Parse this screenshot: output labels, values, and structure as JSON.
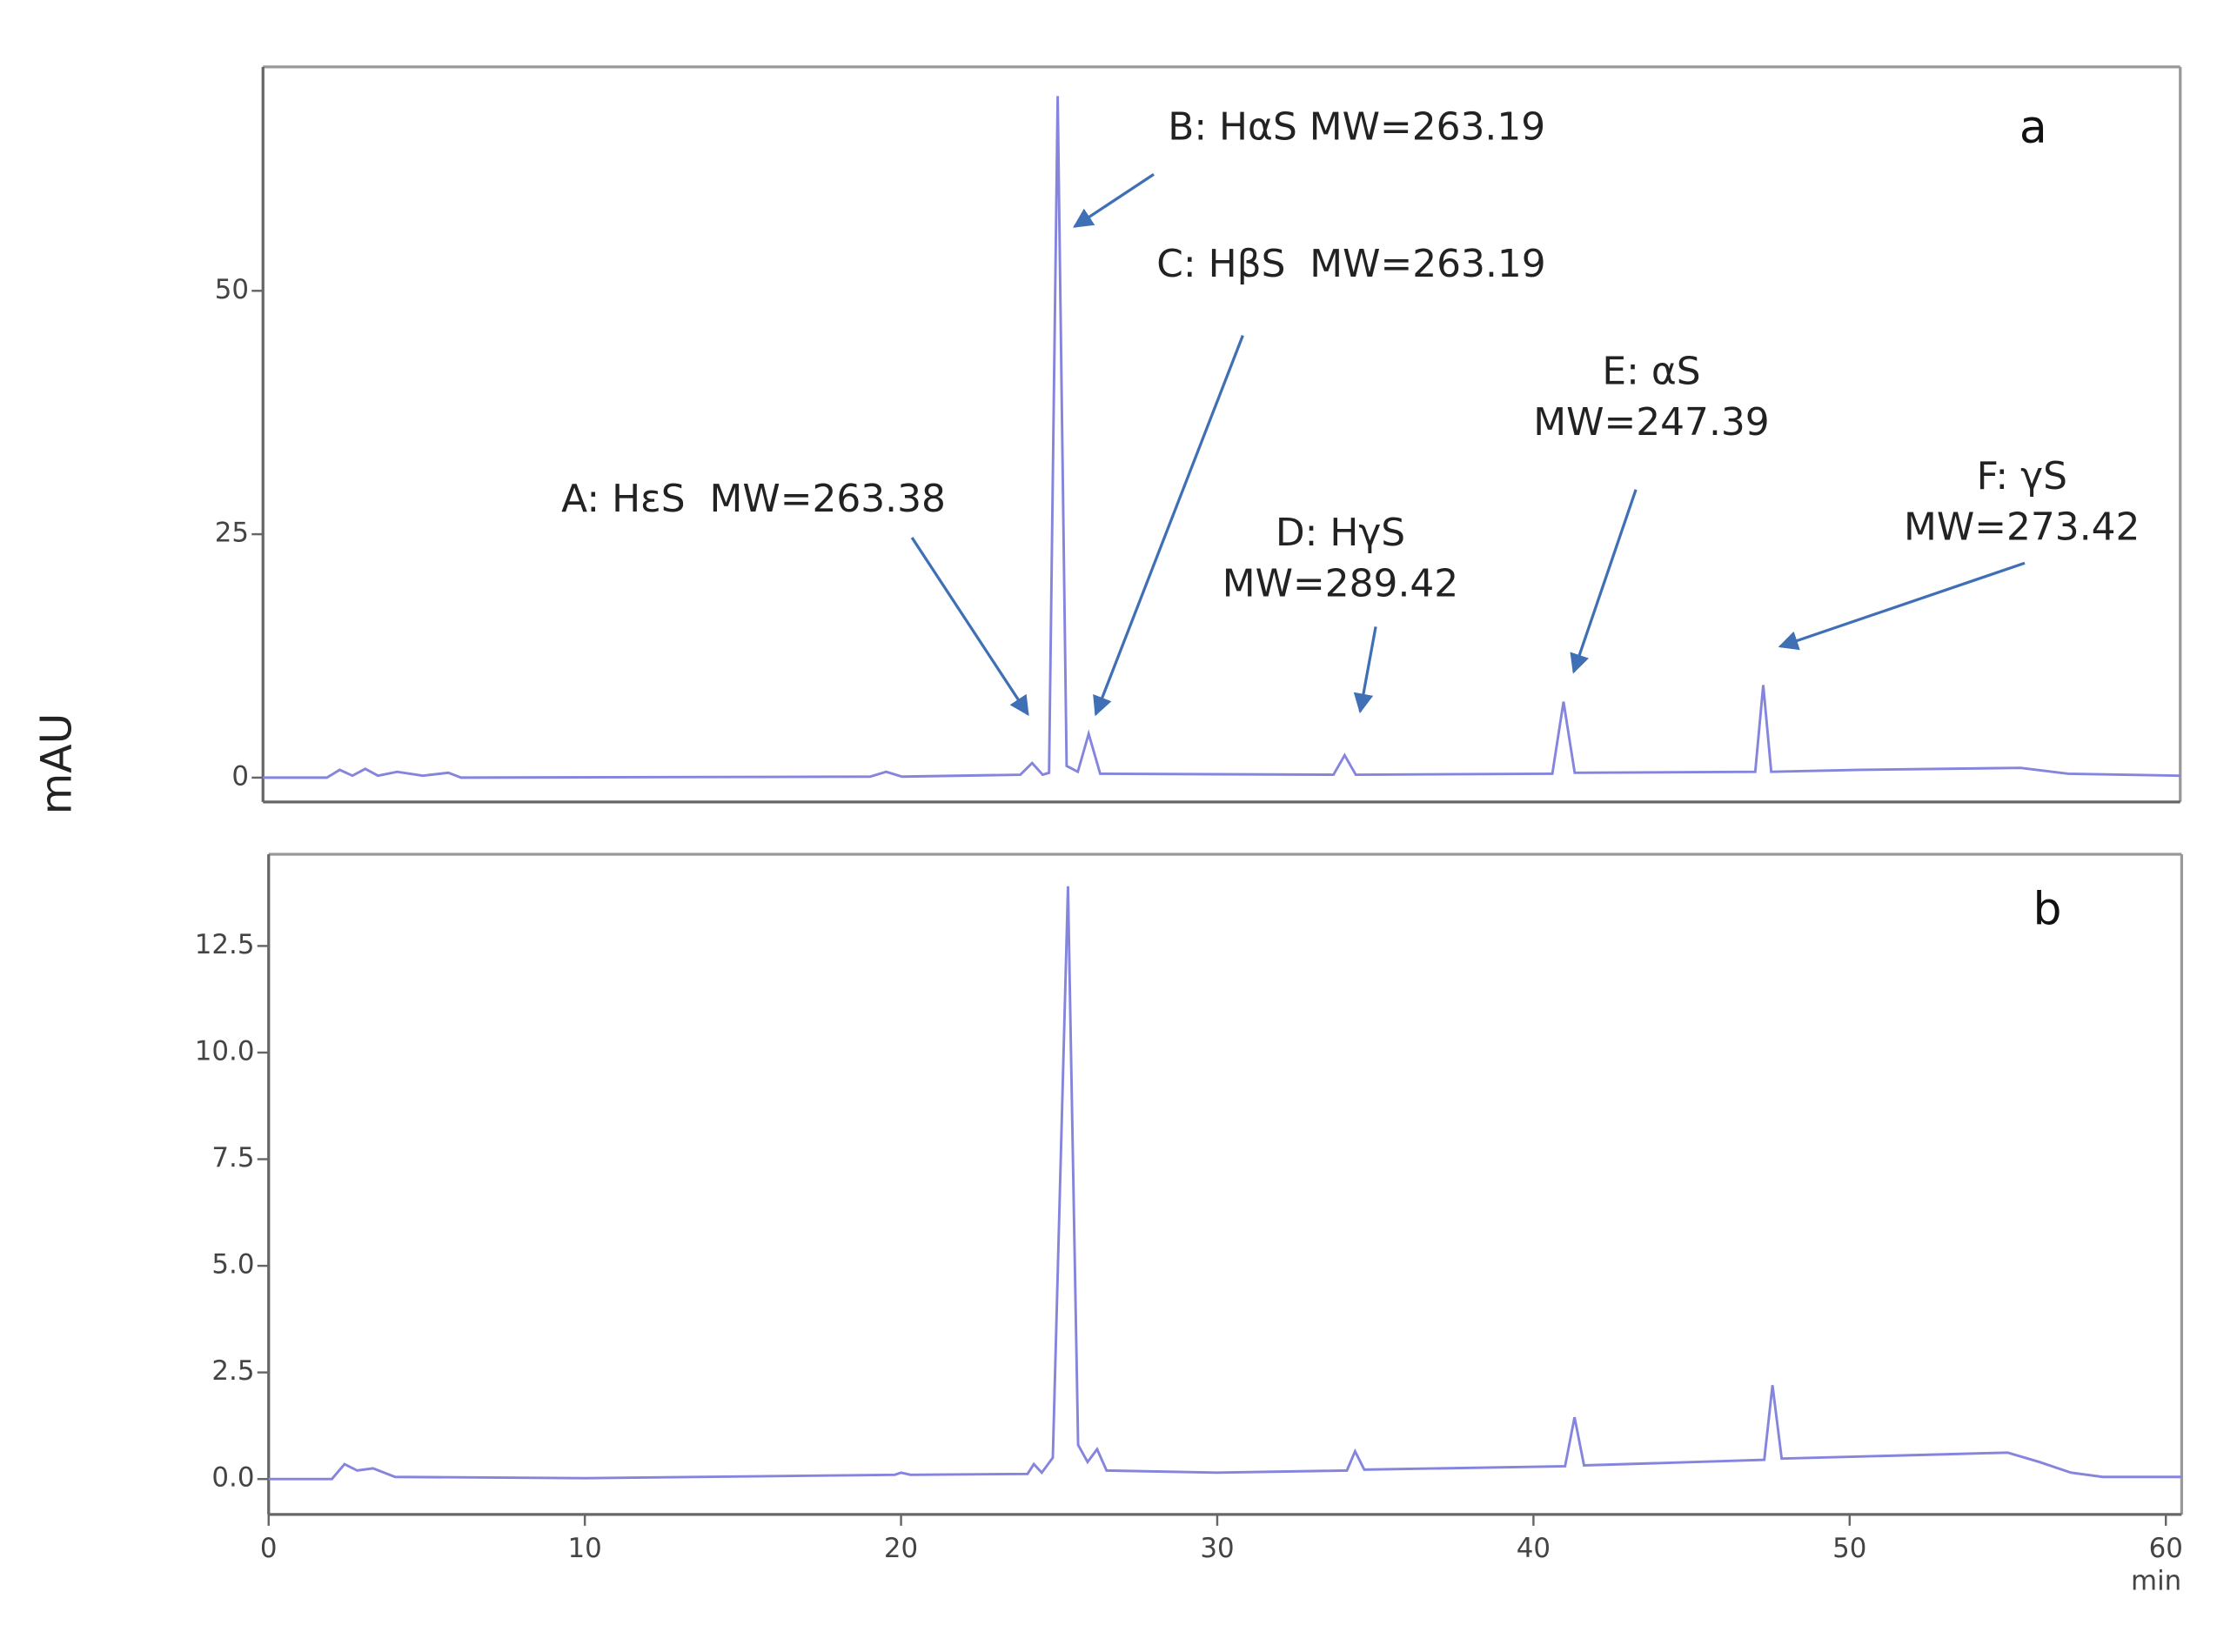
{
  "y_axis_label": "mAU",
  "chart_data": [
    {
      "type": "line",
      "label": "a",
      "color": "#8585de",
      "x": [
        0,
        2,
        2.4,
        2.8,
        3.2,
        3.6,
        4.2,
        5,
        5.8,
        6.2,
        19,
        19.5,
        20,
        23.7,
        24.07,
        24.4,
        24.6,
        24.87,
        25.15,
        25.5,
        25.84,
        26.2,
        33.5,
        33.85,
        34.2,
        40.35,
        40.7,
        41.05,
        46.7,
        46.95,
        47.2,
        50,
        55,
        56.5,
        60
      ],
      "values": [
        0,
        0,
        0.8,
        0.2,
        0.9,
        0.2,
        0.6,
        0.2,
        0.5,
        0,
        0.1,
        0.6,
        0.1,
        0.3,
        1.5,
        0.3,
        0.5,
        70,
        1.2,
        0.6,
        4.5,
        0.4,
        0.3,
        2.3,
        0.3,
        0.4,
        7.8,
        0.5,
        0.6,
        9.5,
        0.6,
        0.8,
        1,
        0.4,
        0.2
      ],
      "xlim": [
        0,
        60
      ],
      "ylim": [
        -2.5,
        73
      ],
      "yticks": [
        0,
        25,
        50
      ],
      "annotations": [
        {
          "lines": [
            "A: HεS  MW=263.38"
          ]
        },
        {
          "lines": [
            "B: HαS MW=263.19"
          ]
        },
        {
          "lines": [
            "C: HβS  MW=263.19"
          ]
        },
        {
          "lines": [
            "D: HγS",
            "MW=289.42"
          ]
        },
        {
          "lines": [
            "E: αS",
            "MW=247.39"
          ]
        },
        {
          "lines": [
            "F: γS",
            "MW=273.42"
          ]
        }
      ]
    },
    {
      "type": "line",
      "label": "b",
      "color": "#8585de",
      "xlabel": "min",
      "x": [
        0,
        2,
        2.4,
        2.8,
        3.3,
        4,
        10,
        19.8,
        20,
        20.3,
        24,
        24.2,
        24.45,
        24.8,
        25.28,
        25.6,
        25.9,
        26.2,
        26.5,
        30,
        34.1,
        34.36,
        34.65,
        41,
        41.3,
        41.6,
        47.3,
        47.56,
        47.85,
        53,
        55,
        56,
        57,
        58,
        60.5
      ],
      "values": [
        0,
        0,
        0.35,
        0.2,
        0.25,
        0.05,
        0.02,
        0.1,
        0.15,
        0.1,
        0.12,
        0.35,
        0.15,
        0.5,
        13.9,
        0.8,
        0.4,
        0.7,
        0.2,
        0.15,
        0.2,
        0.65,
        0.22,
        0.3,
        1.45,
        0.32,
        0.45,
        2.2,
        0.48,
        0.58,
        0.62,
        0.4,
        0.15,
        0.05,
        0.05
      ],
      "xlim": [
        0,
        60.5
      ],
      "ylim": [
        -0.83,
        14.65
      ],
      "xticks": [
        0,
        10,
        20,
        30,
        40,
        50,
        60
      ],
      "yticks": [
        {
          "value": 0,
          "label": "0.0"
        },
        2.5,
        {
          "value": 5,
          "label": "5.0"
        },
        7.5,
        {
          "value": 10,
          "label": "10.0"
        },
        12.5
      ]
    }
  ]
}
